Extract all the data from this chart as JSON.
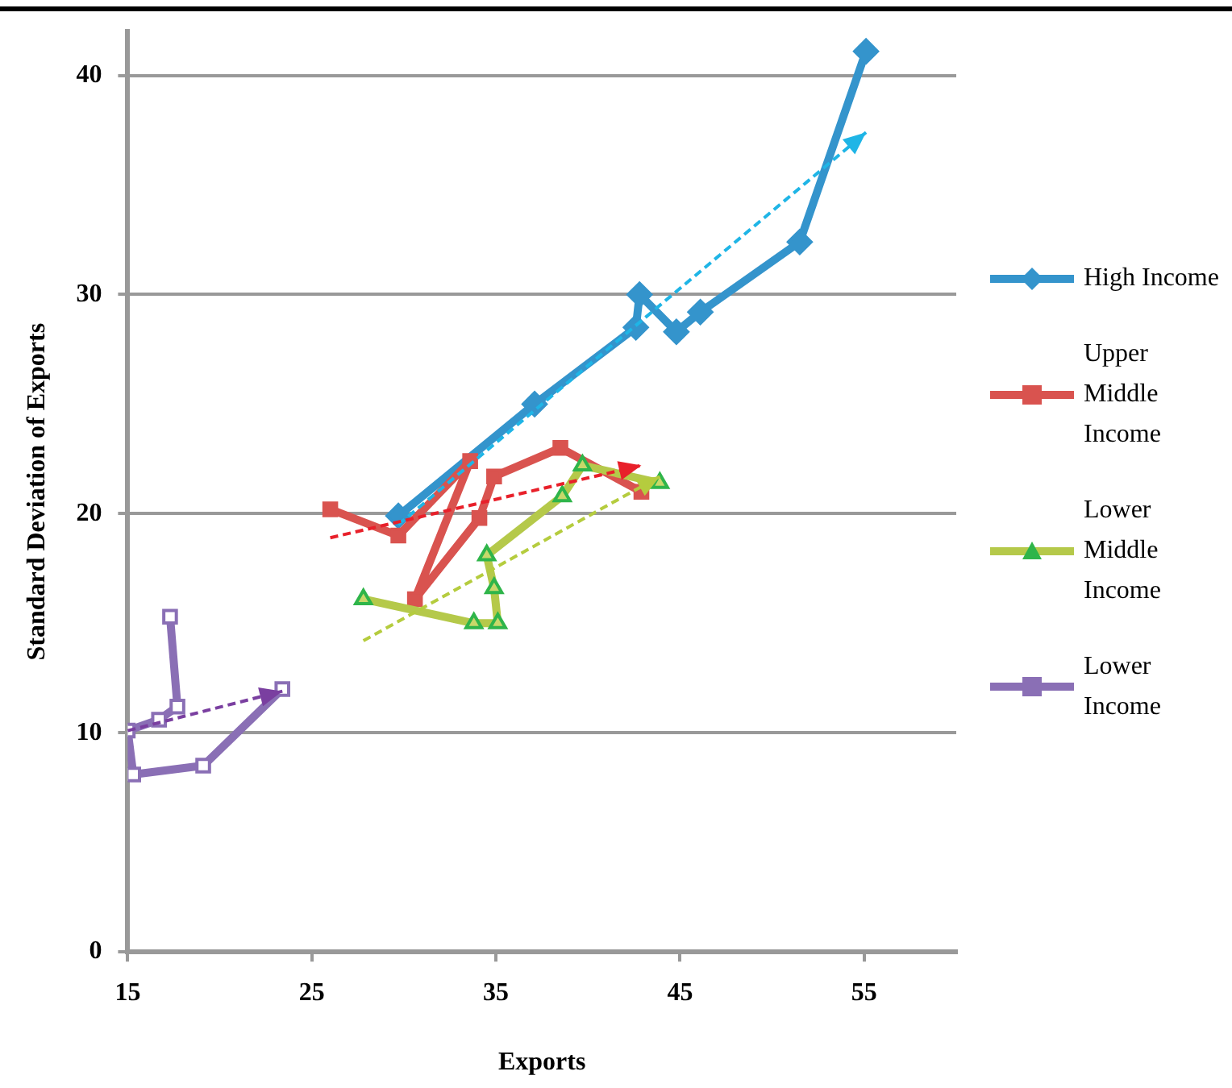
{
  "chart_data": {
    "type": "line",
    "xlabel": "Exports",
    "ylabel": "Standard Deviation of Exports",
    "xlim": [
      15,
      60
    ],
    "xticks": [
      15,
      25,
      35,
      45,
      55
    ],
    "ylim": [
      0,
      42
    ],
    "yticks": [
      0,
      10,
      20,
      30,
      40
    ],
    "grid": "y",
    "legend": "right",
    "series": [
      {
        "name": "High Income",
        "color": "#3494cc",
        "marker": "diamond",
        "x": [
          29.7,
          37.1,
          42.6,
          42.8,
          44.8,
          46.1,
          51.5,
          55.1
        ],
        "values": [
          19.9,
          25.0,
          28.5,
          30.0,
          28.3,
          29.2,
          32.4,
          41.1
        ]
      },
      {
        "name": "Upper Middle Income",
        "color": "#d9534f",
        "marker": "square",
        "x": [
          26.0,
          29.7,
          33.6,
          30.6,
          34.1,
          34.9,
          38.5,
          42.9
        ],
        "values": [
          20.2,
          19.0,
          22.4,
          16.1,
          19.8,
          21.7,
          23.0,
          21.0
        ]
      },
      {
        "name": "Lower Middle Income",
        "color": "#b5c94a",
        "marker": "triangle",
        "x": [
          27.8,
          33.8,
          35.1,
          34.9,
          34.5,
          38.6,
          39.7,
          43.9
        ],
        "values": [
          16.1,
          15.0,
          15.0,
          16.6,
          18.1,
          20.8,
          22.2,
          21.4
        ]
      },
      {
        "name": "Lower Income",
        "color": "#8a6fb5",
        "marker": "square",
        "x": [
          17.3,
          17.7,
          16.7,
          15.0,
          15.3,
          19.1,
          23.4
        ],
        "values": [
          15.3,
          11.2,
          10.6,
          10.1,
          8.1,
          8.5,
          12.0
        ]
      },
      {
        "type": "line",
        "color": "#1fb5e6",
        "line_style": "dashed",
        "x": [
          29.7,
          55.1
        ],
        "values": [
          19.5,
          37.4
        ]
      },
      {
        "type": "line",
        "color": "#e8202a",
        "line_style": "dashed",
        "x": [
          26.0,
          42.9
        ],
        "values": [
          18.9,
          22.2
        ]
      },
      {
        "type": "line",
        "color": "#b5cc3e",
        "line_style": "dashed",
        "x": [
          27.8,
          43.9
        ],
        "values": [
          14.2,
          21.7
        ]
      },
      {
        "type": "line",
        "color": "#7a3fa0",
        "line_style": "dashed",
        "x": [
          15.0,
          23.4
        ],
        "values": [
          10.1,
          11.9
        ]
      }
    ]
  }
}
